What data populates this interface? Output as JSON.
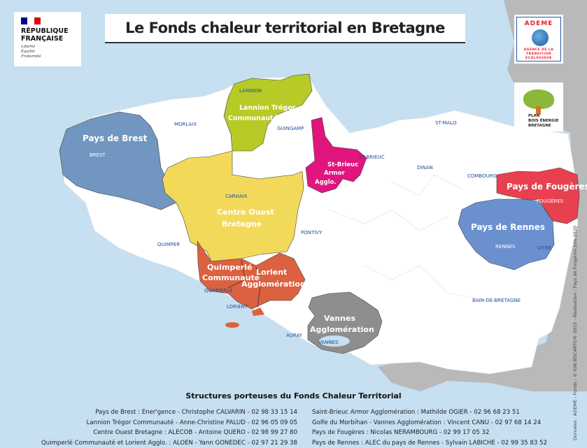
{
  "title": "Le Fonds chaleur territorial en Bretagne",
  "logos": {
    "republique": {
      "line1": "RÉPUBLIQUE",
      "line2": "FRANÇAISE",
      "motto": [
        "Liberté",
        "Égalité",
        "Fraternité"
      ]
    },
    "ademe": {
      "name": "ADEME",
      "subtitle": [
        "AGENCE DE LA",
        "TRANSITION",
        "ÉCOLOGIQUE"
      ]
    },
    "plan_bois": {
      "lines": [
        "PLAN",
        "BOIS ÉNERGIE",
        "BRETAGNE"
      ]
    }
  },
  "colors": {
    "sea": "#c6dff1",
    "land_outside": "#b9b9b9",
    "brittany": "#ffffff",
    "pays_de_brest": "#7196bf",
    "lannion_tregor": "#b7ca25",
    "centre_ouest": "#f2d95a",
    "quimperle_lorient": "#dc6140",
    "st_brieuc": "#e0157d",
    "vannes": "#8e8e8e",
    "fougeres": "#e8404f",
    "rennes": "#6b90cf"
  },
  "regions": {
    "brest": "Pays de Brest",
    "lannion": [
      "Lannion Trégor",
      "Communauté"
    ],
    "centre_ouest": [
      "Centre Ouest",
      "Bretagne"
    ],
    "quimperle": [
      "Quimperlé",
      "Communauté"
    ],
    "lorient": [
      "Lorient",
      "Agglomération"
    ],
    "st_brieuc": [
      "St-Brieuc",
      "Armor",
      "Agglo."
    ],
    "vannes": [
      "Vannes",
      "Agglomération"
    ],
    "fougeres": "Pays de Fougères",
    "rennes": "Pays de Rennes"
  },
  "cities": {
    "lannion": "LANNION",
    "morlaix": "MORLAIX",
    "guingamp": "GUINGAMP",
    "brest": "BREST",
    "st_brieuc": "ST-BRIEUC",
    "st_malo": "ST-MALO",
    "dinan": "DINAN",
    "combourg": "COMBOURG",
    "fougeres": "FOUGÈRES",
    "carhaix": "CARHAIX",
    "quimper": "QUIMPER",
    "pontivy": "PONTIVY",
    "rennes": "RENNES",
    "vitre": "VITRÉ",
    "quimperle": "QUIMPERLÉ",
    "lorient": "LORIENT",
    "bain": "BAIN-DE-BRETAGNE",
    "auray": "AURAY",
    "vannes": "VANNES"
  },
  "legend": {
    "title": "Structures porteuses du Fonds Chaleur Territorial",
    "left": [
      "Pays de Brest : Ener'gence - Christophe CALVARIN - 02 98 33 15 14",
      "Lannion Trégor Communauté - Anne-Christine PALUD - 02 96 05 09 05",
      "Centre Ouest Bretagne : ALECOB - Antoine QUERO - 02 98 99 27 80",
      "Quimperlé Communauté et Lorient Agglo. : ALOEN - Yann GONEDEC - 02 97 21 29 38"
    ],
    "right": [
      "Saint-Brieuc Armor Agglomération : Mathilde OGIER  - 02 96 68 23 51",
      "Golfe du Morbihan - Vannes Agglomération : Vincent CANU - 02 97 68 14 24",
      "Pays de Fougères : Nicolas NERAMBOURG - 02 99 17 05 32",
      "Pays de Rennes : ALEC du pays de Rennes - Sylvain LABICHE - 02 99 35 83 52"
    ]
  },
  "credit": "Données : ADEME - Fonds : © IGN BDCARTO® 2015 - Réalisation : Pays de Fougères juin 2020"
}
